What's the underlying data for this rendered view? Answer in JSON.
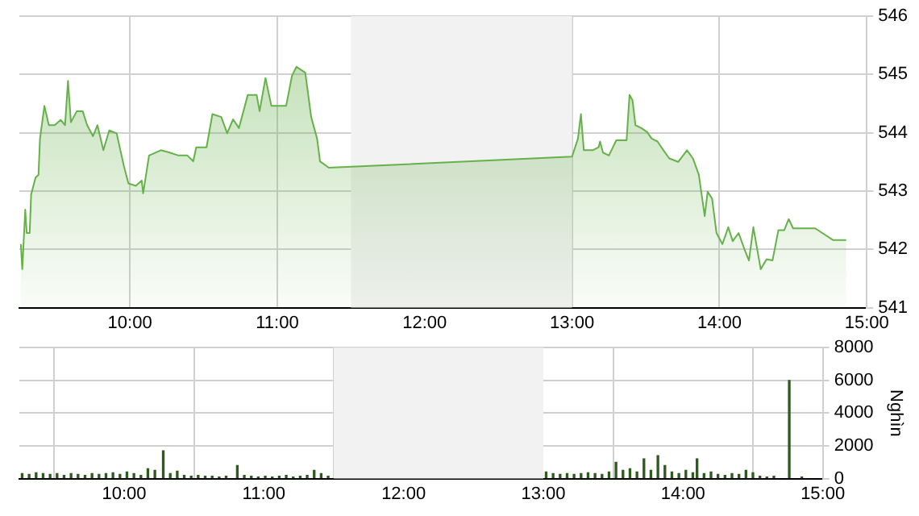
{
  "chart_data": [
    {
      "type": "area",
      "xlim": [
        9.25,
        15
      ],
      "ylim": [
        541,
        546
      ],
      "xticks": [
        {
          "value": 10,
          "label": "10:00"
        },
        {
          "value": 11,
          "label": "11:00"
        },
        {
          "value": 12,
          "label": "12:00"
        },
        {
          "value": 13,
          "label": "13:00"
        },
        {
          "value": 14,
          "label": "14:00"
        },
        {
          "value": 15,
          "label": "15:00"
        }
      ],
      "yticks": [
        541,
        542,
        543,
        544,
        545,
        546
      ],
      "grid": true,
      "legend": false,
      "bands": [
        {
          "axis": "x",
          "from": 11.5,
          "to": 13,
          "color": "#f2f2f2"
        }
      ],
      "series": [
        {
          "color": "#66b14a",
          "x": [
            9.26,
            9.27,
            9.29,
            9.3,
            9.32,
            9.33,
            9.36,
            9.38,
            9.39,
            9.42,
            9.45,
            9.49,
            9.53,
            9.56,
            9.58,
            9.6,
            9.64,
            9.68,
            9.71,
            9.75,
            9.78,
            9.82,
            9.86,
            9.91,
            9.96,
            9.99,
            10.04,
            10.08,
            10.09,
            10.13,
            10.21,
            10.27,
            10.33,
            10.39,
            10.43,
            10.45,
            10.52,
            10.56,
            10.62,
            10.66,
            10.7,
            10.74,
            10.8,
            10.86,
            10.88,
            10.92,
            10.96,
            11.06,
            11.1,
            11.13,
            11.19,
            11.23,
            11.27,
            11.29,
            11.35,
            13.0,
            13.04,
            13.06,
            13.08,
            13.14,
            13.18,
            13.19,
            13.21,
            13.25,
            13.3,
            13.37,
            13.39,
            13.41,
            13.43,
            13.47,
            13.51,
            13.54,
            13.58,
            13.62,
            13.66,
            13.72,
            13.78,
            13.82,
            13.86,
            13.9,
            13.92,
            13.95,
            13.98,
            14.02,
            14.06,
            14.09,
            14.13,
            14.17,
            14.2,
            14.23,
            14.28,
            14.32,
            14.36,
            14.4,
            14.44,
            14.47,
            14.5,
            14.65,
            14.77,
            14.86
          ],
          "values": [
            542.09,
            541.66,
            542.68,
            542.28,
            542.28,
            542.94,
            543.23,
            543.28,
            543.9,
            544.46,
            544.13,
            544.13,
            544.22,
            544.13,
            544.89,
            544.18,
            544.37,
            544.37,
            544.13,
            543.94,
            544.13,
            543.7,
            544.04,
            543.99,
            543.42,
            543.13,
            543.09,
            543.18,
            542.96,
            543.61,
            543.7,
            543.66,
            543.61,
            543.61,
            543.51,
            543.75,
            543.75,
            544.32,
            544.27,
            543.99,
            544.23,
            544.08,
            544.65,
            544.65,
            544.37,
            544.94,
            544.46,
            544.46,
            544.98,
            545.13,
            545.03,
            544.27,
            543.9,
            543.51,
            543.4,
            543.59,
            543.9,
            544.32,
            543.7,
            543.7,
            543.75,
            543.85,
            543.66,
            543.61,
            543.87,
            543.87,
            544.65,
            544.56,
            544.13,
            544.08,
            544.01,
            543.9,
            543.85,
            543.7,
            543.56,
            543.5,
            543.7,
            543.56,
            543.28,
            542.57,
            542.99,
            542.87,
            542.28,
            542.09,
            542.38,
            542.14,
            542.28,
            542.0,
            541.81,
            542.38,
            541.66,
            541.83,
            541.81,
            542.33,
            542.33,
            542.52,
            542.36,
            542.36,
            542.16,
            542.16
          ]
        }
      ]
    },
    {
      "type": "bar",
      "xlim": [
        9.25,
        15
      ],
      "ylim": [
        0,
        8000
      ],
      "ylabel": "Nghìn",
      "xticks": [
        {
          "value": 10,
          "label": "10:00"
        },
        {
          "value": 11,
          "label": "11:00"
        },
        {
          "value": 12,
          "label": "12:00"
        },
        {
          "value": 13,
          "label": "13:00"
        },
        {
          "value": 14,
          "label": "14:00"
        },
        {
          "value": 15,
          "label": "15:00"
        }
      ],
      "yticks": [
        0,
        2000,
        4000,
        6000,
        8000
      ],
      "grid": true,
      "legend": false,
      "bands": [
        {
          "axis": "x",
          "from": 11.5,
          "to": 13,
          "color": "#f2f2f2"
        }
      ],
      "series": [
        {
          "color": "#2d5a1e",
          "x": [
            9.27,
            9.32,
            9.37,
            9.42,
            9.47,
            9.52,
            9.57,
            9.62,
            9.67,
            9.72,
            9.77,
            9.82,
            9.87,
            9.92,
            9.97,
            10.02,
            10.07,
            10.12,
            10.17,
            10.22,
            10.28,
            10.33,
            10.38,
            10.43,
            10.48,
            10.53,
            10.58,
            10.63,
            10.68,
            10.73,
            10.81,
            10.86,
            10.91,
            10.96,
            11.01,
            11.06,
            11.11,
            11.16,
            11.21,
            11.26,
            11.31,
            11.36,
            11.41,
            11.46,
            13.02,
            13.07,
            13.12,
            13.17,
            13.22,
            13.27,
            13.32,
            13.37,
            13.42,
            13.47,
            13.52,
            13.57,
            13.62,
            13.67,
            13.72,
            13.77,
            13.82,
            13.87,
            13.92,
            13.97,
            14.02,
            14.07,
            14.1,
            14.15,
            14.2,
            14.25,
            14.3,
            14.35,
            14.4,
            14.45,
            14.5,
            14.55,
            14.6,
            14.65,
            14.76,
            14.85
          ],
          "values": [
            300,
            250,
            350,
            300,
            250,
            300,
            200,
            300,
            250,
            200,
            300,
            250,
            300,
            350,
            250,
            400,
            300,
            200,
            600,
            500,
            1700,
            300,
            450,
            200,
            150,
            200,
            150,
            150,
            100,
            150,
            800,
            200,
            150,
            100,
            150,
            100,
            150,
            200,
            100,
            150,
            200,
            500,
            300,
            150,
            400,
            300,
            250,
            300,
            250,
            300,
            350,
            300,
            250,
            400,
            1000,
            500,
            600,
            400,
            1200,
            500,
            1400,
            800,
            400,
            300,
            500,
            350,
            1200,
            300,
            400,
            250,
            200,
            300,
            250,
            500,
            350,
            150,
            100,
            150,
            6000,
            100
          ]
        }
      ]
    }
  ]
}
